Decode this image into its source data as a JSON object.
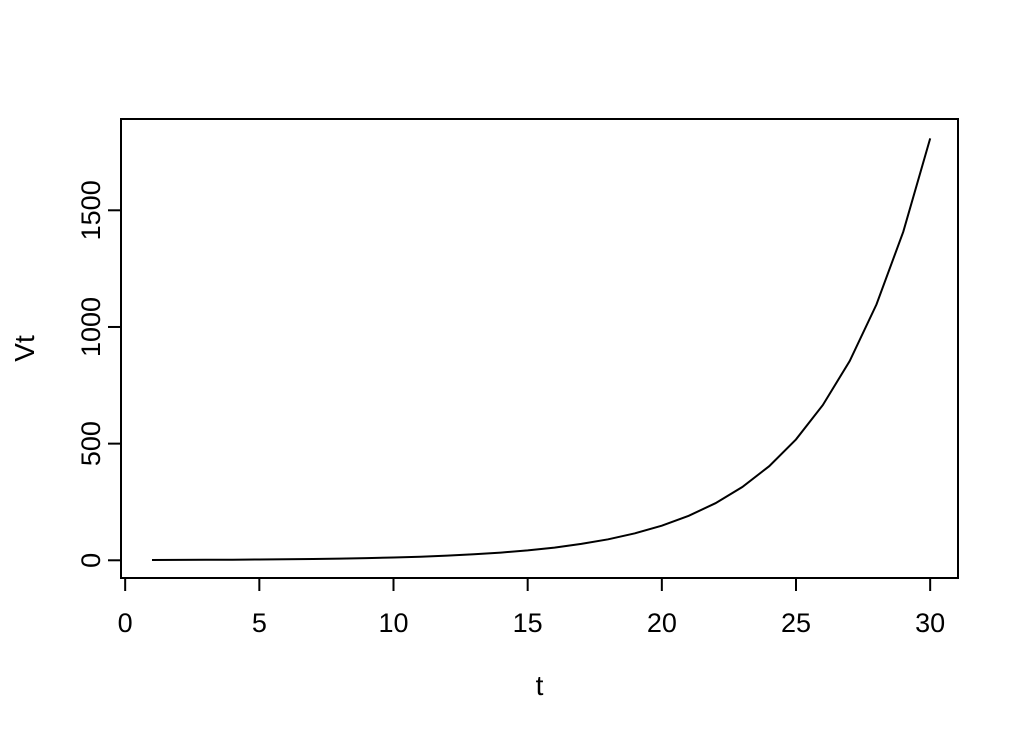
{
  "page": {
    "background_color": "#ffffff",
    "foreground_color": "#000000"
  },
  "chart_data": {
    "type": "line",
    "title": "",
    "xlabel": "t",
    "ylabel": "Vt",
    "x": [
      1,
      2,
      3,
      4,
      5,
      6,
      7,
      8,
      9,
      10,
      11,
      12,
      13,
      14,
      15,
      16,
      17,
      18,
      19,
      20,
      21,
      22,
      23,
      24,
      25,
      26,
      27,
      28,
      29,
      30
    ],
    "y": [
      1.28,
      1.65,
      2.12,
      2.72,
      3.49,
      4.48,
      5.75,
      7.39,
      9.49,
      12.18,
      15.64,
      20.09,
      25.79,
      33.12,
      42.52,
      54.6,
      70.11,
      90.02,
      115.58,
      148.41,
      190.57,
      244.69,
      314.19,
      403.43,
      518.01,
      665.14,
      854.06,
      1096.63,
      1408.1,
      1808.04
    ],
    "x_ticks": [
      0,
      5,
      10,
      15,
      20,
      25,
      30
    ],
    "x_tick_labels": [
      "0",
      "5",
      "10",
      "15",
      "20",
      "25",
      "30"
    ],
    "y_ticks": [
      0,
      500,
      1000,
      1500
    ],
    "y_tick_labels": [
      "0",
      "500",
      "1000",
      "1500"
    ],
    "xlim": [
      0,
      31
    ],
    "ylim": [
      0,
      1890
    ],
    "grid": false,
    "legend": "none",
    "line_color": "#000000",
    "box_color": "#000000"
  }
}
